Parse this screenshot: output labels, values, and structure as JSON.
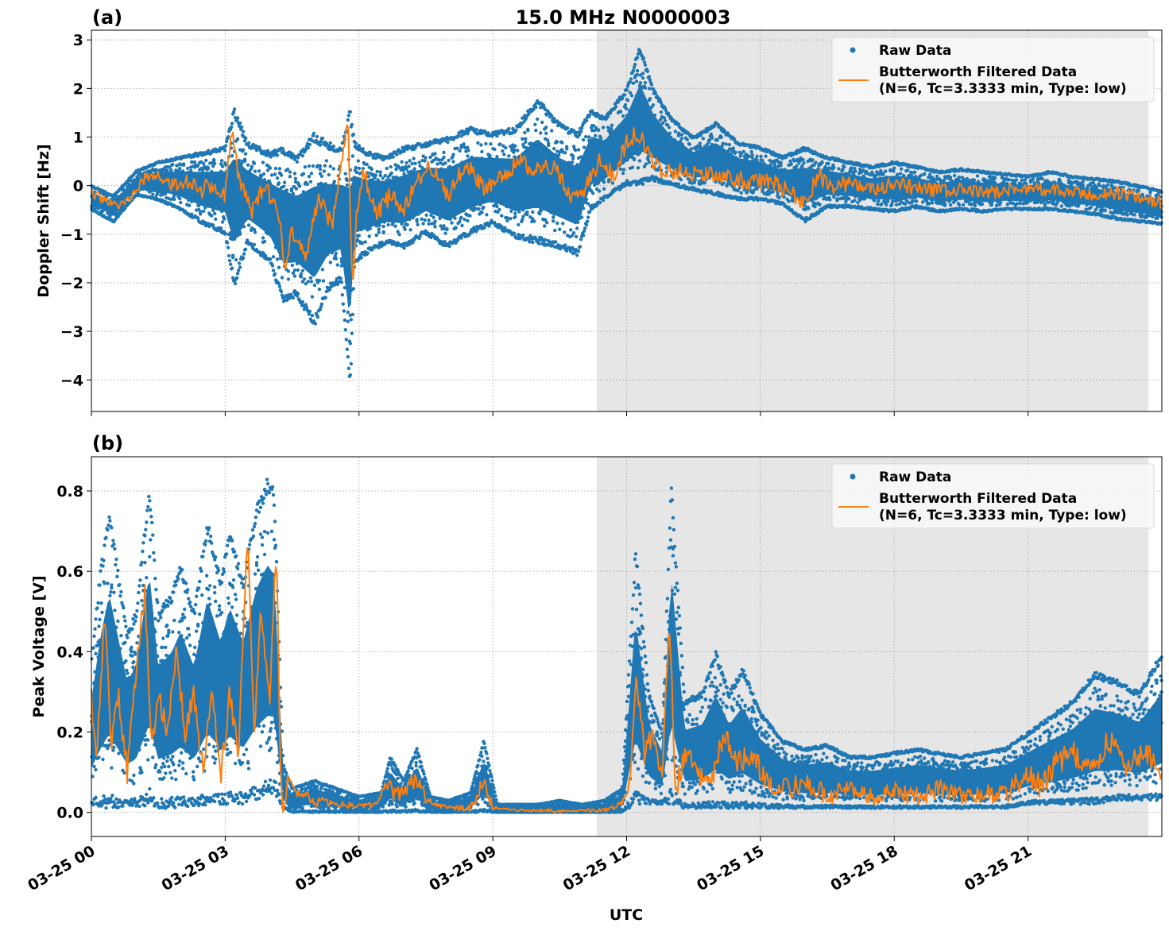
{
  "figure": {
    "title": "15.0 MHz N0000003",
    "xlabel": "UTC"
  },
  "colors": {
    "raw": "#1f77b4",
    "filtered": "#ff7f0e",
    "shade": "#e6e6e6"
  },
  "chart_data": [
    {
      "type": "scatter",
      "panel_label": "(a)",
      "title": "15.0 MHz N0000003",
      "xlabel": "",
      "ylabel": "Doppler Shift [Hz]",
      "x_unit": "hours since 03-25 00:00 UTC",
      "xlim": [
        0,
        24
      ],
      "ylim": [
        -4.65,
        3.2
      ],
      "yticks": [
        3,
        2,
        1,
        0,
        -1,
        -2,
        -3,
        -4
      ],
      "ytick_labels": [
        "3",
        "2",
        "1",
        "0",
        "−1",
        "−2",
        "−3",
        "−4"
      ],
      "xticks": [
        0,
        3,
        6,
        9,
        12,
        15,
        18,
        21
      ],
      "xtick_labels": [],
      "grid": true,
      "shaded_region": [
        11.33,
        23.7
      ],
      "legend": {
        "placement": "top-right",
        "entries": [
          "Raw Data",
          "Butterworth Filtered Data",
          "(N=6, Tc=3.3333 min, Type: low)"
        ]
      },
      "series": [
        {
          "name": "Raw Data",
          "kind": "scatter-envelope",
          "x": [
            0,
            0.5,
            1,
            1.5,
            2,
            2.5,
            3,
            3.2,
            3.5,
            4,
            4.3,
            4.6,
            5,
            5.3,
            5.6,
            5.8,
            5.9,
            6.2,
            6.6,
            7,
            7.5,
            8,
            8.5,
            9,
            9.5,
            10,
            10.5,
            10.9,
            11.2,
            11.5,
            12,
            12.3,
            12.6,
            13,
            13.5,
            14,
            14.5,
            15,
            15.5,
            16,
            16.5,
            17,
            17.5,
            18,
            18.5,
            19,
            19.5,
            20,
            20.5,
            21,
            21.5,
            22,
            22.5,
            23,
            23.5,
            24
          ],
          "upper": [
            0,
            -0.2,
            0.3,
            0.5,
            0.6,
            0.7,
            0.8,
            1.6,
            0.9,
            0.7,
            0.8,
            0.6,
            1.1,
            0.9,
            0.8,
            1.6,
            0.9,
            0.7,
            0.6,
            0.8,
            0.9,
            1.0,
            1.2,
            1.1,
            1.2,
            1.8,
            1.3,
            1.1,
            1.6,
            1.4,
            2.0,
            2.9,
            2.0,
            1.4,
            1.0,
            1.3,
            0.9,
            0.8,
            0.6,
            0.8,
            0.6,
            0.5,
            0.4,
            0.5,
            0.4,
            0.3,
            0.35,
            0.3,
            0.25,
            0.2,
            0.3,
            0.2,
            0.15,
            0.1,
            0.0,
            -0.1
          ],
          "lower": [
            -0.5,
            -0.75,
            -0.2,
            -0.3,
            -0.5,
            -0.8,
            -1.0,
            -2.1,
            -1.2,
            -1.6,
            -2.4,
            -2.3,
            -2.9,
            -2.2,
            -2.0,
            -4.3,
            -1.6,
            -1.4,
            -1.2,
            -1.3,
            -1.0,
            -1.3,
            -1.0,
            -0.8,
            -1.1,
            -1.2,
            -1.3,
            -1.45,
            -0.5,
            -0.3,
            0.0,
            0.0,
            0.1,
            0.0,
            -0.1,
            -0.2,
            -0.3,
            -0.3,
            -0.4,
            -0.75,
            -0.45,
            -0.45,
            -0.5,
            -0.55,
            -0.45,
            -0.55,
            -0.5,
            -0.55,
            -0.5,
            -0.5,
            -0.5,
            -0.55,
            -0.6,
            -0.7,
            -0.75,
            -0.8
          ]
        },
        {
          "name": "Butterworth Filtered Data",
          "kind": "line",
          "x": [
            0,
            0.3,
            0.6,
            0.9,
            1.2,
            1.5,
            1.8,
            2.1,
            2.4,
            2.7,
            3.0,
            3.15,
            3.3,
            3.6,
            3.9,
            4.2,
            4.35,
            4.5,
            4.8,
            5.1,
            5.4,
            5.6,
            5.75,
            5.85,
            5.95,
            6.1,
            6.4,
            6.7,
            7.0,
            7.3,
            7.6,
            8.0,
            8.4,
            8.8,
            9.2,
            9.6,
            10.0,
            10.4,
            10.8,
            11.1,
            11.4,
            11.7,
            12.0,
            12.25,
            12.5,
            12.8,
            13.2,
            13.6,
            14.0,
            14.4,
            14.8,
            15.2,
            15.6,
            16.0,
            16.3,
            16.6,
            17.0,
            17.5,
            18.0,
            18.5,
            19.0,
            19.5,
            20.0,
            20.5,
            21.0,
            21.5,
            22.0,
            22.5,
            23.0,
            23.5,
            24.0
          ],
          "y": [
            -0.15,
            -0.3,
            -0.45,
            -0.2,
            0.15,
            0.2,
            0.0,
            0.1,
            -0.1,
            0.0,
            -0.2,
            1.2,
            0.1,
            -0.5,
            0.0,
            -0.6,
            -1.7,
            -0.9,
            -1.4,
            -0.3,
            -0.8,
            0.4,
            1.5,
            -2.2,
            -0.6,
            0.3,
            -0.6,
            -0.2,
            -0.5,
            0.1,
            0.4,
            -0.2,
            0.5,
            -0.1,
            0.2,
            0.5,
            0.3,
            0.4,
            -0.3,
            0.0,
            0.5,
            0.2,
            0.9,
            1.1,
            0.6,
            0.3,
            0.3,
            0.25,
            0.2,
            0.15,
            0.05,
            0.1,
            -0.1,
            -0.35,
            0.2,
            0.0,
            0.05,
            -0.1,
            0.0,
            -0.05,
            -0.1,
            -0.1,
            -0.15,
            -0.1,
            -0.05,
            -0.1,
            -0.15,
            -0.2,
            -0.15,
            -0.25,
            -0.35
          ]
        }
      ]
    },
    {
      "type": "scatter",
      "panel_label": "(b)",
      "title": "",
      "xlabel": "UTC",
      "ylabel": "Peak Voltage [V]",
      "x_unit": "hours since 03-25 00:00 UTC",
      "xlim": [
        0,
        24
      ],
      "ylim": [
        -0.06,
        0.885
      ],
      "yticks": [
        0.8,
        0.6,
        0.4,
        0.2,
        0.0
      ],
      "ytick_labels": [
        "0.8",
        "0.6",
        "0.4",
        "0.2",
        "0.0"
      ],
      "xticks": [
        0,
        3,
        6,
        9,
        12,
        15,
        18,
        21
      ],
      "xtick_labels": [
        "03-25 00",
        "03-25 03",
        "03-25 06",
        "03-25 09",
        "03-25 12",
        "03-25 15",
        "03-25 18",
        "03-25 21"
      ],
      "grid": true,
      "shaded_region": [
        11.33,
        23.7
      ],
      "legend": {
        "placement": "top-right",
        "entries": [
          "Raw Data",
          "Butterworth Filtered Data",
          "(N=6, Tc=3.3333 min, Type: low)"
        ]
      },
      "series": [
        {
          "name": "Raw Data",
          "kind": "scatter-envelope",
          "x": [
            0,
            0.2,
            0.4,
            0.8,
            1.0,
            1.3,
            1.5,
            1.8,
            2.0,
            2.3,
            2.6,
            2.9,
            3.1,
            3.4,
            3.7,
            3.95,
            4.1,
            4.3,
            4.5,
            5.0,
            5.5,
            6.0,
            6.5,
            6.7,
            7.0,
            7.3,
            7.6,
            8.0,
            8.5,
            8.8,
            9.1,
            9.5,
            10.0,
            10.5,
            11.0,
            11.5,
            11.9,
            12.2,
            12.5,
            12.8,
            13.0,
            13.3,
            13.7,
            14.0,
            14.3,
            14.6,
            15.0,
            15.5,
            16.0,
            16.5,
            17.0,
            17.5,
            18.0,
            18.5,
            19.0,
            19.5,
            20.0,
            20.5,
            21.0,
            21.5,
            22.0,
            22.5,
            23.0,
            23.5,
            24.0
          ],
          "upper": [
            0.38,
            0.6,
            0.75,
            0.45,
            0.5,
            0.82,
            0.5,
            0.55,
            0.62,
            0.5,
            0.73,
            0.58,
            0.7,
            0.58,
            0.76,
            0.84,
            0.8,
            0.12,
            0.06,
            0.08,
            0.06,
            0.04,
            0.05,
            0.14,
            0.08,
            0.16,
            0.04,
            0.03,
            0.05,
            0.18,
            0.02,
            0.02,
            0.02,
            0.03,
            0.02,
            0.03,
            0.06,
            0.66,
            0.3,
            0.2,
            0.82,
            0.28,
            0.3,
            0.4,
            0.3,
            0.36,
            0.25,
            0.18,
            0.16,
            0.17,
            0.14,
            0.14,
            0.15,
            0.16,
            0.15,
            0.14,
            0.15,
            0.16,
            0.2,
            0.24,
            0.28,
            0.35,
            0.33,
            0.3,
            0.4
          ],
          "lower": [
            0.02,
            0.01,
            0.01,
            0.01,
            0.01,
            0.02,
            0.01,
            0.01,
            0.01,
            0.01,
            0.02,
            0.02,
            0.02,
            0.02,
            0.03,
            0.04,
            0.05,
            0.01,
            0.0,
            0.0,
            0.0,
            0.0,
            0.0,
            0.0,
            0.0,
            0.0,
            0.0,
            0.0,
            0.0,
            0.0,
            0.0,
            0.0,
            0.0,
            0.0,
            0.0,
            0.0,
            0.0,
            0.02,
            0.02,
            0.02,
            0.02,
            0.01,
            0.01,
            0.01,
            0.01,
            0.01,
            0.01,
            0.01,
            0.01,
            0.01,
            0.01,
            0.01,
            0.01,
            0.01,
            0.01,
            0.01,
            0.01,
            0.01,
            0.02,
            0.02,
            0.02,
            0.02,
            0.03,
            0.03,
            0.03
          ]
        },
        {
          "name": "Butterworth Filtered Data",
          "kind": "line",
          "x": [
            0,
            0.1,
            0.3,
            0.45,
            0.6,
            0.8,
            1.0,
            1.2,
            1.35,
            1.5,
            1.7,
            1.9,
            2.1,
            2.3,
            2.5,
            2.7,
            2.9,
            3.1,
            3.3,
            3.5,
            3.65,
            3.8,
            4.0,
            4.15,
            4.25,
            4.3,
            4.4,
            4.6,
            5.0,
            5.5,
            6.0,
            6.4,
            6.6,
            6.8,
            7.1,
            7.3,
            7.5,
            8.0,
            8.5,
            8.8,
            9.0,
            9.5,
            10.0,
            10.5,
            11.0,
            11.5,
            11.9,
            12.05,
            12.2,
            12.4,
            12.6,
            12.8,
            12.95,
            13.1,
            13.3,
            13.6,
            13.9,
            14.2,
            14.5,
            14.8,
            15.1,
            15.5,
            16.0,
            16.5,
            17.0,
            17.5,
            18.0,
            18.5,
            19.0,
            19.5,
            20.0,
            20.5,
            21.0,
            21.3,
            21.6,
            22.0,
            22.4,
            22.8,
            23.2,
            23.6,
            24.0
          ],
          "y": [
            0.3,
            0.12,
            0.5,
            0.15,
            0.3,
            0.1,
            0.35,
            0.55,
            0.15,
            0.3,
            0.2,
            0.4,
            0.2,
            0.3,
            0.1,
            0.3,
            0.08,
            0.3,
            0.15,
            0.7,
            0.2,
            0.5,
            0.3,
            0.65,
            0.05,
            -0.015,
            0.08,
            0.05,
            0.03,
            0.02,
            0.015,
            0.02,
            0.08,
            0.04,
            0.06,
            0.09,
            0.03,
            0.01,
            0.01,
            0.07,
            0.01,
            0.005,
            0.005,
            0.005,
            0.005,
            0.005,
            0.02,
            0.05,
            0.34,
            0.15,
            0.2,
            0.08,
            0.5,
            0.05,
            0.15,
            0.1,
            0.08,
            0.2,
            0.12,
            0.15,
            0.08,
            0.06,
            0.07,
            0.04,
            0.06,
            0.04,
            0.05,
            0.04,
            0.06,
            0.04,
            0.05,
            0.04,
            0.1,
            0.06,
            0.12,
            0.15,
            0.1,
            0.18,
            0.12,
            0.15,
            0.1
          ]
        }
      ]
    }
  ]
}
